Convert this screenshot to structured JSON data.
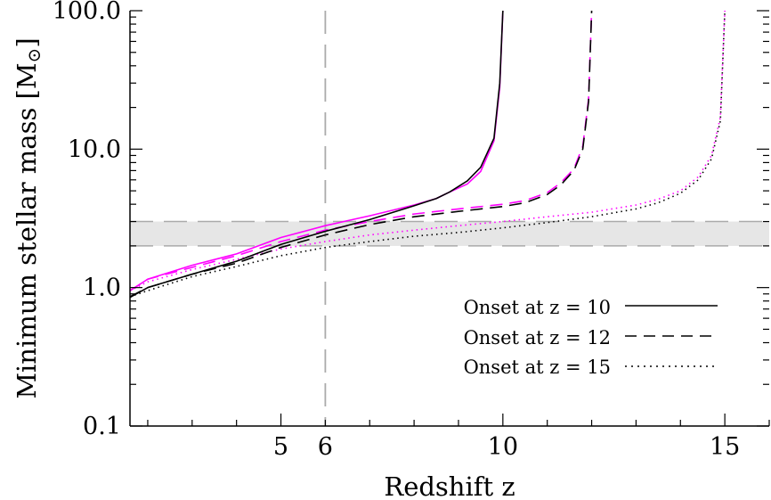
{
  "chart_data": {
    "type": "line",
    "xlabel": "Redshift z",
    "ylabel": "Minimum stellar mass [M",
    "ylabel_symbol": "⊙",
    "ylabel_close": "]",
    "xlim": [
      1.6,
      16
    ],
    "ylim": [
      0.1,
      100
    ],
    "yscale": "log",
    "x_ticks": [
      5,
      6,
      10,
      15
    ],
    "x_tick_labels": [
      "5",
      "6",
      "10",
      "15"
    ],
    "y_ticks": [
      0.1,
      1,
      10,
      100
    ],
    "y_tick_labels": [
      "0.1",
      "1.0",
      "10.0",
      "100.0"
    ],
    "grid": false,
    "legend_position": "lower-right",
    "band": {
      "y_range": [
        2.0,
        3.0
      ],
      "color": "#e6e6e6",
      "edge_color": "#aaaaaa"
    },
    "vline": {
      "x": 6,
      "color": "#aaaaaa"
    },
    "legend": [
      {
        "label": "Onset at z = 10",
        "style": "solid"
      },
      {
        "label": "Onset at z = 12",
        "style": "dashed"
      },
      {
        "label": "Onset at z = 15",
        "style": "dotted"
      }
    ],
    "series": [
      {
        "onset": "10",
        "style": "solid",
        "color": "#000000",
        "x": [
          1.6,
          2,
          3,
          4,
          5,
          6,
          7,
          8,
          8.5,
          8.8,
          9.2,
          9.5,
          9.8,
          9.93,
          10.0
        ],
        "y": [
          0.85,
          1.0,
          1.25,
          1.55,
          2.05,
          2.55,
          3.1,
          3.9,
          4.4,
          4.9,
          5.9,
          7.4,
          12.0,
          30.0,
          100.0
        ]
      },
      {
        "onset": "10",
        "style": "solid",
        "color": "#ff00ff",
        "x": [
          1.6,
          2,
          3,
          4,
          5,
          6,
          7,
          8,
          8.5,
          8.8,
          9.2,
          9.5,
          9.8,
          9.93,
          10.0
        ],
        "y": [
          0.95,
          1.15,
          1.45,
          1.75,
          2.3,
          2.8,
          3.3,
          3.95,
          4.4,
          4.9,
          5.6,
          6.9,
          11.5,
          28.0,
          100.0
        ]
      },
      {
        "onset": "12",
        "style": "dashed",
        "color": "#000000",
        "x": [
          1.6,
          2,
          3,
          4,
          5,
          6,
          7,
          8,
          9,
          10,
          10.5,
          11,
          11.3,
          11.6,
          11.8,
          11.93,
          12.0
        ],
        "y": [
          0.86,
          1.0,
          1.25,
          1.5,
          1.95,
          2.4,
          2.85,
          3.25,
          3.55,
          3.85,
          4.1,
          4.7,
          5.5,
          7.0,
          10.0,
          22.0,
          100.0
        ]
      },
      {
        "onset": "12",
        "style": "dashed",
        "color": "#ff00ff",
        "x": [
          1.6,
          2,
          3,
          4,
          5,
          6,
          7,
          8,
          9,
          10,
          10.5,
          11,
          11.3,
          11.6,
          11.8,
          11.93,
          12.0
        ],
        "y": [
          0.95,
          1.15,
          1.4,
          1.7,
          2.15,
          2.6,
          3.0,
          3.4,
          3.7,
          4.0,
          4.25,
          4.85,
          5.7,
          7.2,
          10.5,
          23.0,
          100.0
        ]
      },
      {
        "onset": "15",
        "style": "dotted",
        "color": "#000000",
        "x": [
          1.6,
          2,
          3,
          4,
          5,
          6,
          7,
          8,
          9,
          10,
          11,
          12,
          13,
          13.5,
          14,
          14.4,
          14.7,
          14.9,
          15.0
        ],
        "y": [
          0.86,
          0.95,
          1.2,
          1.42,
          1.7,
          1.95,
          2.15,
          2.35,
          2.5,
          2.7,
          2.95,
          3.25,
          3.7,
          4.1,
          4.8,
          6.0,
          8.5,
          16.0,
          100.0
        ]
      },
      {
        "onset": "15",
        "style": "dotted",
        "color": "#ff00ff",
        "x": [
          1.6,
          2,
          3,
          4,
          5,
          6,
          7,
          8,
          9,
          10,
          11,
          12,
          13,
          13.5,
          14,
          14.4,
          14.7,
          14.9,
          15.0
        ],
        "y": [
          0.95,
          1.1,
          1.35,
          1.6,
          1.9,
          2.15,
          2.4,
          2.6,
          2.8,
          3.0,
          3.25,
          3.5,
          3.95,
          4.35,
          5.0,
          6.3,
          9.0,
          17.0,
          100.0
        ]
      }
    ]
  }
}
